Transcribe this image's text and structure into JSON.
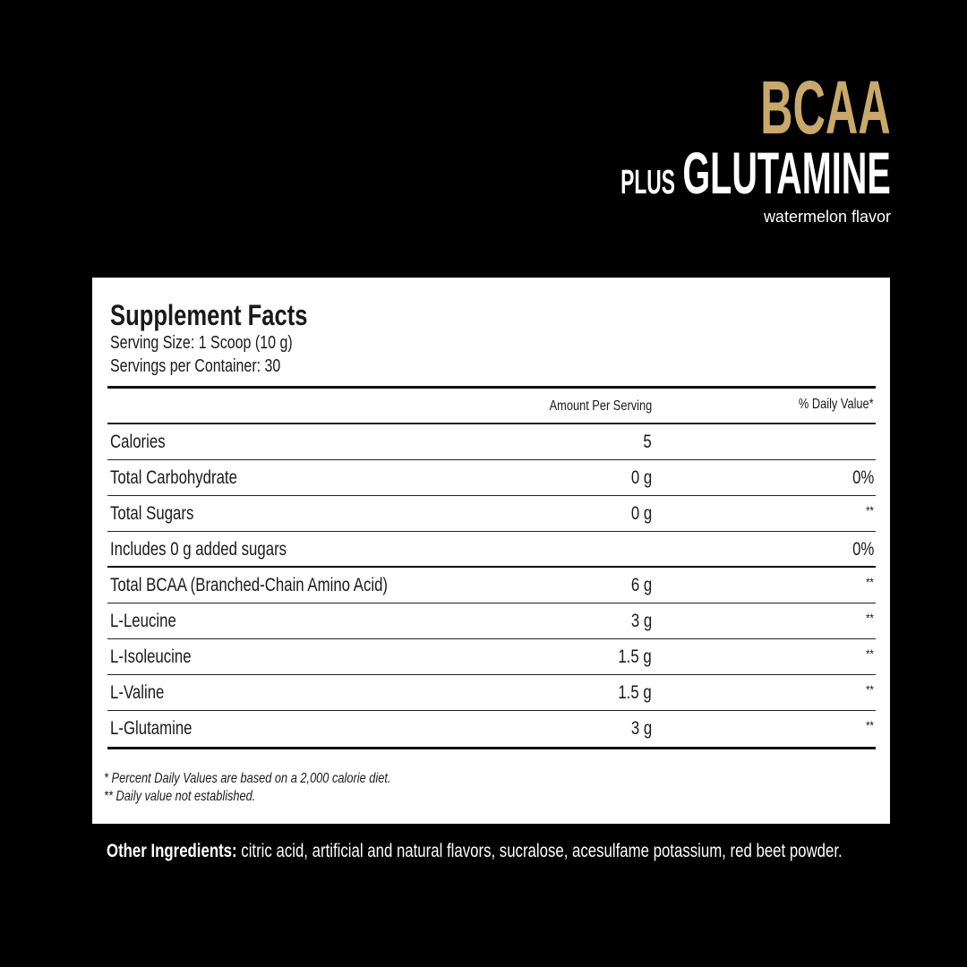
{
  "brand": {
    "title": "BCAA",
    "plus": "PLUS",
    "product": "GLUTAMINE",
    "flavor": "watermelon flavor",
    "accent_color": "#c9a86a"
  },
  "facts": {
    "title": "Supplement Facts",
    "serving_size": "Serving Size: 1 Scoop (10 g)",
    "servings": "Servings per Container: 30",
    "header": {
      "amount": "Amount Per Serving",
      "dv": "% Daily Value*"
    },
    "rows": [
      {
        "label": "Calories",
        "amount": "5",
        "dv": ""
      },
      {
        "label": "Total Carbohydrate",
        "amount": "0 g",
        "dv": "0%"
      },
      {
        "label": "Total Sugars",
        "amount": "0 g",
        "dv": "**"
      },
      {
        "label": " Includes 0 g added sugars",
        "amount": "",
        "dv": "0%"
      },
      {
        "label": "Total BCAA (Branched-Chain Amino Acid)",
        "amount": "6 g",
        "dv": "**"
      },
      {
        "label": "L-Leucine",
        "amount": "3 g",
        "dv": "**"
      },
      {
        "label": "L-Isoleucine",
        "amount": "1.5 g",
        "dv": "**"
      },
      {
        "label": "L-Valine",
        "amount": "1.5 g",
        "dv": "**"
      },
      {
        "label": "L-Glutamine",
        "amount": "3 g",
        "dv": "**"
      }
    ],
    "note1": "* Percent Daily Values are based on a 2,000 calorie diet.",
    "note2": "** Daily value not established."
  },
  "other": {
    "label": "Other Ingredients:",
    "text": " citric acid, artificial and natural flavors,  sucralose, acesulfame potassium, red beet powder."
  }
}
